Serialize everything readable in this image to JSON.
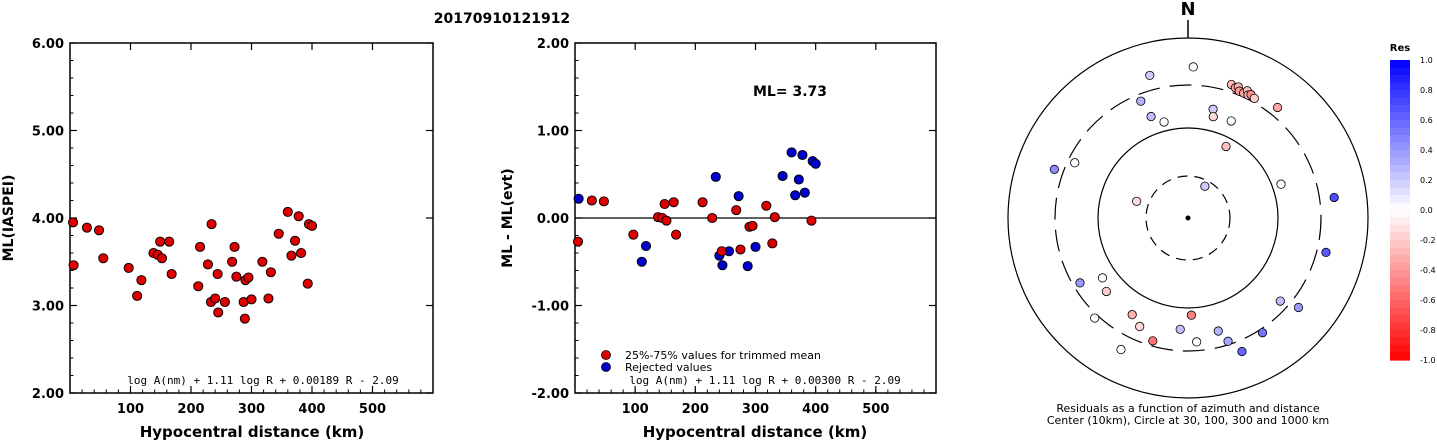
{
  "event_id": "20170910121912",
  "chart_data": [
    {
      "type": "scatter",
      "ylabel": "ML(IASPEI)",
      "xlabel": "Hypocentral distance (km)",
      "xlim": [
        0,
        600
      ],
      "ylim": [
        2.0,
        6.0
      ],
      "xticks": [
        "100",
        "200",
        "300",
        "400",
        "500"
      ],
      "yticks": [
        "2.00",
        "3.00",
        "4.00",
        "5.00",
        "6.00"
      ],
      "formula": "log A(nm) + 1.11 log R + 0.00189 R - 2.09",
      "points": [
        [
          5,
          3.95
        ],
        [
          6,
          3.46
        ],
        [
          28,
          3.89
        ],
        [
          48,
          3.86
        ],
        [
          55,
          3.54
        ],
        [
          97,
          3.43
        ],
        [
          111,
          3.11
        ],
        [
          118,
          3.29
        ],
        [
          138,
          3.6
        ],
        [
          145,
          3.58
        ],
        [
          149,
          3.73
        ],
        [
          152,
          3.54
        ],
        [
          164,
          3.73
        ],
        [
          168,
          3.36
        ],
        [
          212,
          3.22
        ],
        [
          215,
          3.67
        ],
        [
          228,
          3.47
        ],
        [
          233,
          3.04
        ],
        [
          234,
          3.93
        ],
        [
          240,
          3.08
        ],
        [
          244,
          3.36
        ],
        [
          245,
          2.92
        ],
        [
          256,
          3.04
        ],
        [
          268,
          3.5
        ],
        [
          272,
          3.67
        ],
        [
          275,
          3.33
        ],
        [
          287,
          3.04
        ],
        [
          289,
          2.85
        ],
        [
          290,
          3.29
        ],
        [
          295,
          3.32
        ],
        [
          300,
          3.07
        ],
        [
          318,
          3.5
        ],
        [
          328,
          3.08
        ],
        [
          332,
          3.38
        ],
        [
          345,
          3.82
        ],
        [
          360,
          4.07
        ],
        [
          366,
          3.57
        ],
        [
          372,
          3.74
        ],
        [
          378,
          4.02
        ],
        [
          382,
          3.6
        ],
        [
          393,
          3.25
        ],
        [
          395,
          3.93
        ],
        [
          400,
          3.91
        ]
      ]
    },
    {
      "type": "scatter",
      "ylabel": "ML - ML(evt)",
      "xlabel": "Hypocentral distance (km)",
      "xlim": [
        0,
        600
      ],
      "ylim": [
        -2.0,
        2.0
      ],
      "xticks": [
        "100",
        "200",
        "300",
        "400",
        "500"
      ],
      "yticks": [
        "-2.00",
        "-1.00",
        "0.00",
        "1.00",
        "2.00"
      ],
      "annotation": "ML= 3.73",
      "formula": "log A(nm) + 1.11 log R + 0.00300 R - 2.09",
      "legend": [
        {
          "label": "25%-75% values for trimmed mean",
          "color": "#dd0000"
        },
        {
          "label": "Rejected values",
          "color": "#0000cc"
        }
      ],
      "series": [
        {
          "name": "25%-75% values for trimmed mean",
          "points": [
            [
              5,
              -0.27
            ],
            [
              28,
              0.2
            ],
            [
              48,
              0.19
            ],
            [
              97,
              -0.19
            ],
            [
              138,
              0.01
            ],
            [
              145,
              0.0
            ],
            [
              149,
              0.16
            ],
            [
              152,
              -0.03
            ],
            [
              164,
              0.18
            ],
            [
              168,
              -0.19
            ],
            [
              212,
              0.18
            ],
            [
              228,
              0.0
            ],
            [
              244,
              -0.38
            ],
            [
              268,
              0.09
            ],
            [
              275,
              -0.36
            ],
            [
              290,
              -0.1
            ],
            [
              295,
              -0.09
            ],
            [
              318,
              0.14
            ],
            [
              328,
              -0.29
            ],
            [
              332,
              0.01
            ],
            [
              393,
              -0.03
            ]
          ]
        },
        {
          "name": "Rejected values",
          "points": [
            [
              6,
              0.22
            ],
            [
              111,
              -0.5
            ],
            [
              118,
              -0.32
            ],
            [
              234,
              0.47
            ],
            [
              240,
              -0.43
            ],
            [
              245,
              -0.54
            ],
            [
              256,
              -0.38
            ],
            [
              272,
              0.25
            ],
            [
              287,
              -0.55
            ],
            [
              300,
              -0.33
            ],
            [
              345,
              0.48
            ],
            [
              360,
              0.75
            ],
            [
              366,
              0.26
            ],
            [
              372,
              0.44
            ],
            [
              378,
              0.72
            ],
            [
              382,
              0.29
            ],
            [
              395,
              0.65
            ],
            [
              400,
              0.62
            ]
          ]
        }
      ]
    },
    {
      "type": "scatter",
      "subtype": "polar",
      "north_label": "N",
      "caption_line1": "Residuals as a function of azimuth and distance",
      "caption_line2": "Center (10km), Circle at 30, 100, 300 and 1000 km",
      "legend_title": "Res",
      "colorbar_ticks": [
        "1.0",
        "0.8",
        "0.6",
        "0.4",
        "0.2",
        "0.0",
        "-0.2",
        "-0.4",
        "-0.6",
        "-0.8",
        "-1.0"
      ],
      "colorbar_range": [
        -1.0,
        1.0
      ],
      "colors": {
        "positive": "#0000ff",
        "negative": "#ff0000",
        "zero": "#ffffff"
      },
      "stations": [
        {
          "az": 2,
          "r": 0.84,
          "res": 0.0
        },
        {
          "az": 18,
          "r": 0.78,
          "res": -0.27
        },
        {
          "az": 20,
          "r": 0.77,
          "res": -0.35
        },
        {
          "az": 21,
          "r": 0.78,
          "res": -0.3
        },
        {
          "az": 22,
          "r": 0.76,
          "res": -0.4
        },
        {
          "az": 24,
          "r": 0.76,
          "res": -0.34
        },
        {
          "az": 25,
          "r": 0.78,
          "res": -0.25
        },
        {
          "az": 26,
          "r": 0.76,
          "res": -0.3
        },
        {
          "az": 27,
          "r": 0.77,
          "res": -0.45
        },
        {
          "az": 29,
          "r": 0.76,
          "res": -0.2
        },
        {
          "az": 39,
          "r": 0.79,
          "res": -0.35
        },
        {
          "az": 13,
          "r": 0.62,
          "res": 0.2
        },
        {
          "az": 14,
          "r": 0.58,
          "res": -0.15
        },
        {
          "az": 24,
          "r": 0.59,
          "res": 0.0
        },
        {
          "az": 28,
          "r": 0.45,
          "res": -0.25
        },
        {
          "az": 345,
          "r": 0.82,
          "res": 0.2
        },
        {
          "az": 70,
          "r": 0.55,
          "res": 0.0
        },
        {
          "az": 82,
          "r": 0.82,
          "res": 0.7
        },
        {
          "az": 104,
          "r": 0.79,
          "res": 0.65
        },
        {
          "az": 129,
          "r": 0.79,
          "res": 0.4
        },
        {
          "az": 132,
          "r": 0.69,
          "res": 0.25
        },
        {
          "az": 147,
          "r": 0.76,
          "res": 0.55
        },
        {
          "az": 158,
          "r": 0.8,
          "res": 0.6
        },
        {
          "az": 162,
          "r": 0.72,
          "res": 0.35
        },
        {
          "az": 165,
          "r": 0.65,
          "res": 0.3
        },
        {
          "az": 176,
          "r": 0.69,
          "res": 0.0
        },
        {
          "az": 178,
          "r": 0.54,
          "res": -0.5
        },
        {
          "az": 184,
          "r": 0.62,
          "res": 0.25
        },
        {
          "az": 196,
          "r": 0.71,
          "res": -0.55
        },
        {
          "az": 207,
          "r": 0.82,
          "res": 0.0
        },
        {
          "az": 204,
          "r": 0.66,
          "res": -0.15
        },
        {
          "az": 210,
          "r": 0.62,
          "res": -0.3
        },
        {
          "az": 223,
          "r": 0.76,
          "res": 0.0
        },
        {
          "az": 228,
          "r": 0.61,
          "res": -0.2
        },
        {
          "az": 235,
          "r": 0.58,
          "res": 0.0
        },
        {
          "az": 239,
          "r": 0.7,
          "res": 0.4
        },
        {
          "az": 296,
          "r": 0.7,
          "res": 0.0
        },
        {
          "az": 290,
          "r": 0.79,
          "res": 0.45
        },
        {
          "az": 28,
          "r": 0.2,
          "res": 0.2
        },
        {
          "az": 288,
          "r": 0.3,
          "res": -0.15
        },
        {
          "az": 338,
          "r": 0.7,
          "res": 0.3
        },
        {
          "az": 346,
          "r": 0.55,
          "res": 0.0
        },
        {
          "az": 340,
          "r": 0.6,
          "res": 0.25
        }
      ]
    }
  ]
}
